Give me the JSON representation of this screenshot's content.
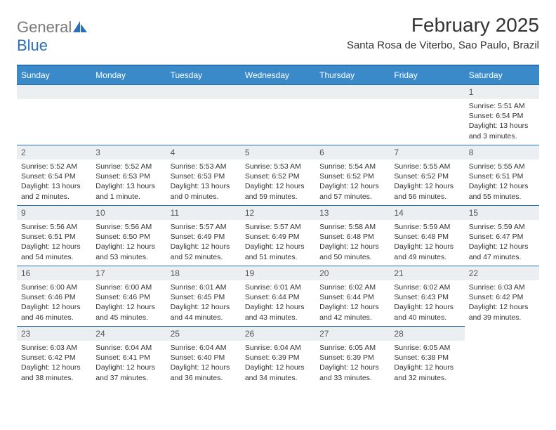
{
  "logo": {
    "text1": "General",
    "text2": "Blue",
    "icon_color": "#2b6fb5"
  },
  "title": "February 2025",
  "location": "Santa Rosa de Viterbo, Sao Paulo, Brazil",
  "colors": {
    "header_bg": "#3a8ac9",
    "border": "#2b6fb5",
    "daynum_bg": "#eceff1"
  },
  "weekdays": [
    "Sunday",
    "Monday",
    "Tuesday",
    "Wednesday",
    "Thursday",
    "Friday",
    "Saturday"
  ],
  "weeks": [
    [
      {
        "empty": true
      },
      {
        "empty": true
      },
      {
        "empty": true
      },
      {
        "empty": true
      },
      {
        "empty": true
      },
      {
        "empty": true
      },
      {
        "day": "1",
        "sunrise": "Sunrise: 5:51 AM",
        "sunset": "Sunset: 6:54 PM",
        "daylight": "Daylight: 13 hours and 3 minutes."
      }
    ],
    [
      {
        "day": "2",
        "sunrise": "Sunrise: 5:52 AM",
        "sunset": "Sunset: 6:54 PM",
        "daylight": "Daylight: 13 hours and 2 minutes."
      },
      {
        "day": "3",
        "sunrise": "Sunrise: 5:52 AM",
        "sunset": "Sunset: 6:53 PM",
        "daylight": "Daylight: 13 hours and 1 minute."
      },
      {
        "day": "4",
        "sunrise": "Sunrise: 5:53 AM",
        "sunset": "Sunset: 6:53 PM",
        "daylight": "Daylight: 13 hours and 0 minutes."
      },
      {
        "day": "5",
        "sunrise": "Sunrise: 5:53 AM",
        "sunset": "Sunset: 6:52 PM",
        "daylight": "Daylight: 12 hours and 59 minutes."
      },
      {
        "day": "6",
        "sunrise": "Sunrise: 5:54 AM",
        "sunset": "Sunset: 6:52 PM",
        "daylight": "Daylight: 12 hours and 57 minutes."
      },
      {
        "day": "7",
        "sunrise": "Sunrise: 5:55 AM",
        "sunset": "Sunset: 6:52 PM",
        "daylight": "Daylight: 12 hours and 56 minutes."
      },
      {
        "day": "8",
        "sunrise": "Sunrise: 5:55 AM",
        "sunset": "Sunset: 6:51 PM",
        "daylight": "Daylight: 12 hours and 55 minutes."
      }
    ],
    [
      {
        "day": "9",
        "sunrise": "Sunrise: 5:56 AM",
        "sunset": "Sunset: 6:51 PM",
        "daylight": "Daylight: 12 hours and 54 minutes."
      },
      {
        "day": "10",
        "sunrise": "Sunrise: 5:56 AM",
        "sunset": "Sunset: 6:50 PM",
        "daylight": "Daylight: 12 hours and 53 minutes."
      },
      {
        "day": "11",
        "sunrise": "Sunrise: 5:57 AM",
        "sunset": "Sunset: 6:49 PM",
        "daylight": "Daylight: 12 hours and 52 minutes."
      },
      {
        "day": "12",
        "sunrise": "Sunrise: 5:57 AM",
        "sunset": "Sunset: 6:49 PM",
        "daylight": "Daylight: 12 hours and 51 minutes."
      },
      {
        "day": "13",
        "sunrise": "Sunrise: 5:58 AM",
        "sunset": "Sunset: 6:48 PM",
        "daylight": "Daylight: 12 hours and 50 minutes."
      },
      {
        "day": "14",
        "sunrise": "Sunrise: 5:59 AM",
        "sunset": "Sunset: 6:48 PM",
        "daylight": "Daylight: 12 hours and 49 minutes."
      },
      {
        "day": "15",
        "sunrise": "Sunrise: 5:59 AM",
        "sunset": "Sunset: 6:47 PM",
        "daylight": "Daylight: 12 hours and 47 minutes."
      }
    ],
    [
      {
        "day": "16",
        "sunrise": "Sunrise: 6:00 AM",
        "sunset": "Sunset: 6:46 PM",
        "daylight": "Daylight: 12 hours and 46 minutes."
      },
      {
        "day": "17",
        "sunrise": "Sunrise: 6:00 AM",
        "sunset": "Sunset: 6:46 PM",
        "daylight": "Daylight: 12 hours and 45 minutes."
      },
      {
        "day": "18",
        "sunrise": "Sunrise: 6:01 AM",
        "sunset": "Sunset: 6:45 PM",
        "daylight": "Daylight: 12 hours and 44 minutes."
      },
      {
        "day": "19",
        "sunrise": "Sunrise: 6:01 AM",
        "sunset": "Sunset: 6:44 PM",
        "daylight": "Daylight: 12 hours and 43 minutes."
      },
      {
        "day": "20",
        "sunrise": "Sunrise: 6:02 AM",
        "sunset": "Sunset: 6:44 PM",
        "daylight": "Daylight: 12 hours and 42 minutes."
      },
      {
        "day": "21",
        "sunrise": "Sunrise: 6:02 AM",
        "sunset": "Sunset: 6:43 PM",
        "daylight": "Daylight: 12 hours and 40 minutes."
      },
      {
        "day": "22",
        "sunrise": "Sunrise: 6:03 AM",
        "sunset": "Sunset: 6:42 PM",
        "daylight": "Daylight: 12 hours and 39 minutes."
      }
    ],
    [
      {
        "day": "23",
        "sunrise": "Sunrise: 6:03 AM",
        "sunset": "Sunset: 6:42 PM",
        "daylight": "Daylight: 12 hours and 38 minutes."
      },
      {
        "day": "24",
        "sunrise": "Sunrise: 6:04 AM",
        "sunset": "Sunset: 6:41 PM",
        "daylight": "Daylight: 12 hours and 37 minutes."
      },
      {
        "day": "25",
        "sunrise": "Sunrise: 6:04 AM",
        "sunset": "Sunset: 6:40 PM",
        "daylight": "Daylight: 12 hours and 36 minutes."
      },
      {
        "day": "26",
        "sunrise": "Sunrise: 6:04 AM",
        "sunset": "Sunset: 6:39 PM",
        "daylight": "Daylight: 12 hours and 34 minutes."
      },
      {
        "day": "27",
        "sunrise": "Sunrise: 6:05 AM",
        "sunset": "Sunset: 6:39 PM",
        "daylight": "Daylight: 12 hours and 33 minutes."
      },
      {
        "day": "28",
        "sunrise": "Sunrise: 6:05 AM",
        "sunset": "Sunset: 6:38 PM",
        "daylight": "Daylight: 12 hours and 32 minutes."
      },
      {
        "empty": true,
        "noborder": true
      }
    ]
  ]
}
